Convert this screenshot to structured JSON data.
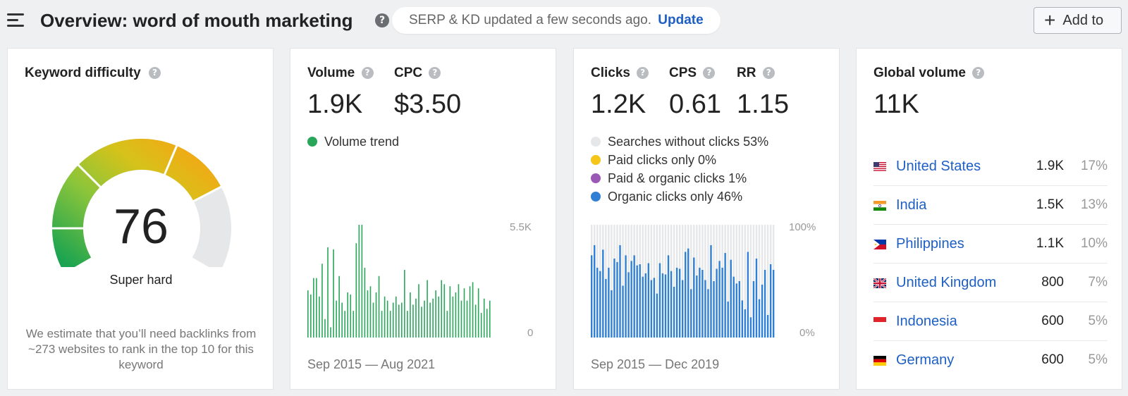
{
  "header": {
    "title": "Overview: word of mouth marketing",
    "help_glyph": "?",
    "serp_status": "SERP & KD updated a few seconds ago.",
    "update_label": "Update",
    "add_to_label": "Add to"
  },
  "keyword_difficulty": {
    "label": "Keyword difficulty",
    "value": "76",
    "description": "Super hard",
    "estimate": "We estimate that you’ll need backlinks from ~273 websites to rank in the top 10 for this keyword",
    "score": 76
  },
  "volume_card": {
    "volume_label": "Volume",
    "volume_value": "1.9K",
    "cpc_label": "CPC",
    "cpc_value": "$3.50",
    "trend_label": "Volume trend",
    "trend_color": "#2aa65a",
    "axis_max": "5.5K",
    "axis_min": "0",
    "date_range": "Sep 2015 — Aug 2021"
  },
  "clicks_card": {
    "clicks_label": "Clicks",
    "clicks_value": "1.2K",
    "cps_label": "CPS",
    "cps_value": "0.61",
    "rr_label": "RR",
    "rr_value": "1.15",
    "legend": [
      {
        "label": "Searches without clicks 53%",
        "color": "#e6e7e9"
      },
      {
        "label": "Paid clicks only 0%",
        "color": "#f5c518"
      },
      {
        "label": "Paid & organic clicks 1%",
        "color": "#9b59b6"
      },
      {
        "label": "Organic clicks only 46%",
        "color": "#2f7fd4"
      }
    ],
    "axis_max": "100%",
    "axis_min": "0%",
    "date_range": "Sep 2015 — Dec 2019"
  },
  "global_card": {
    "label": "Global volume",
    "value": "11K",
    "countries": [
      {
        "name": "United States",
        "volume": "1.9K",
        "percent": "17%",
        "flag": "us"
      },
      {
        "name": "India",
        "volume": "1.5K",
        "percent": "13%",
        "flag": "in"
      },
      {
        "name": "Philippines",
        "volume": "1.1K",
        "percent": "10%",
        "flag": "ph"
      },
      {
        "name": "United Kingdom",
        "volume": "800",
        "percent": "7%",
        "flag": "gb"
      },
      {
        "name": "Indonesia",
        "volume": "600",
        "percent": "5%",
        "flag": "id"
      },
      {
        "name": "Germany",
        "volume": "600",
        "percent": "5%",
        "flag": "de"
      }
    ]
  },
  "chart_data": [
    {
      "type": "bar",
      "ylim": [
        0,
        5500
      ],
      "series": [
        {
          "values": [
            2300,
            2100,
            2900,
            2900,
            2000,
            3600,
            900,
            4400,
            500,
            4300,
            1800,
            3000,
            1700,
            1300,
            2200,
            2100,
            1300,
            4600,
            5500,
            5700,
            3400,
            2300,
            2500,
            1700,
            2200,
            3000,
            1300,
            2000,
            1800,
            1300,
            1700,
            2000,
            1600,
            1700,
            3300,
            1300,
            2200,
            1600,
            1900,
            2600,
            1500,
            1800,
            2800,
            1700,
            1900,
            2300,
            2000,
            2800,
            2600,
            1300,
            2500,
            2000,
            2200,
            2600,
            1800,
            2400,
            1800,
            2500,
            2700,
            1600,
            2400,
            1200,
            1900,
            1400,
            1800
          ]
        }
      ]
    },
    {
      "type": "bar",
      "stacked": true,
      "ylim": [
        0,
        100
      ],
      "series": [
        {
          "name": "Organic clicks only",
          "values": [
            73,
            82,
            62,
            59,
            78,
            52,
            62,
            42,
            70,
            67,
            82,
            46,
            73,
            58,
            68,
            73,
            64,
            65,
            54,
            57,
            66,
            51,
            53,
            39,
            66,
            57,
            56,
            73,
            59,
            45,
            62,
            61,
            51,
            76,
            79,
            43,
            71,
            55,
            62,
            60,
            51,
            43,
            82,
            50,
            61,
            68,
            62,
            75,
            32,
            69,
            54,
            48,
            50,
            33,
            25,
            76,
            18,
            50,
            70,
            34,
            47,
            60,
            20,
            65,
            60
          ]
        },
        {
          "name": "Paid & organic clicks",
          "values": [
            0,
            0,
            0,
            0,
            0,
            0,
            0,
            0,
            0,
            0,
            0,
            0,
            0,
            0,
            0,
            0,
            0,
            0,
            0,
            0,
            0,
            0,
            0,
            0,
            0,
            0,
            0,
            0,
            0,
            0,
            0,
            0,
            0,
            0,
            0,
            0,
            0,
            0,
            0,
            0,
            0,
            0,
            0,
            0,
            0,
            0,
            0,
            0,
            0,
            0,
            0,
            0,
            0,
            0,
            0,
            0,
            0,
            0,
            0,
            0,
            0,
            0,
            0,
            0,
            0
          ]
        },
        {
          "name": "Paid clicks only",
          "values": [
            0,
            0,
            0,
            0,
            0,
            0,
            0,
            0,
            0,
            0,
            0,
            0,
            0,
            0,
            0,
            0,
            0,
            0,
            0,
            0,
            0,
            0,
            0,
            0,
            0,
            0,
            0,
            0,
            0,
            0,
            0,
            0,
            0,
            0,
            0,
            0,
            0,
            0,
            0,
            0,
            0,
            0,
            0,
            0,
            0,
            0,
            0,
            0,
            0,
            0,
            0,
            0,
            0,
            0,
            0,
            0,
            0,
            0,
            0,
            0,
            0,
            0,
            0,
            0,
            0
          ]
        },
        {
          "name": "Searches without clicks",
          "values": [
            27,
            18,
            38,
            41,
            22,
            48,
            38,
            58,
            30,
            33,
            18,
            54,
            27,
            42,
            32,
            27,
            36,
            35,
            46,
            43,
            34,
            49,
            47,
            61,
            34,
            43,
            44,
            27,
            41,
            55,
            38,
            39,
            49,
            24,
            21,
            57,
            29,
            45,
            38,
            40,
            49,
            57,
            18,
            50,
            39,
            32,
            38,
            25,
            68,
            31,
            46,
            52,
            50,
            67,
            75,
            24,
            82,
            50,
            30,
            66,
            53,
            40,
            80,
            35,
            40
          ]
        }
      ]
    }
  ]
}
